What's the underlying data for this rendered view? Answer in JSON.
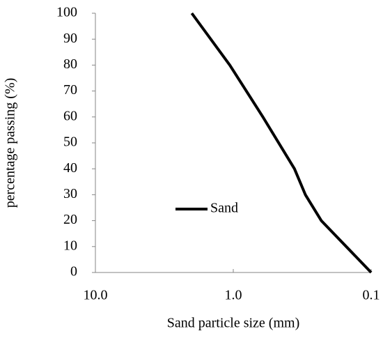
{
  "chart_data": {
    "type": "line",
    "x": [
      2.0,
      1.06,
      0.61,
      0.36,
      0.3,
      0.23,
      0.1
    ],
    "series": [
      {
        "name": "Sand",
        "color": "#000000",
        "values": [
          100,
          80,
          60,
          40,
          30,
          20,
          0
        ]
      }
    ],
    "xlabel": "Sand particle size (mm)",
    "ylabel": "percentage passing (%)",
    "xscale": "log",
    "xlim": [
      10,
      0.1
    ],
    "xticks": [
      {
        "value": 10,
        "label": "10.0"
      },
      {
        "value": 1,
        "label": "1.0"
      },
      0.1
    ],
    "ylim": [
      0,
      100
    ],
    "yticks": [
      0,
      10,
      20,
      30,
      40,
      50,
      60,
      70,
      80,
      90,
      100
    ],
    "grid": false,
    "legend": "center-left"
  }
}
